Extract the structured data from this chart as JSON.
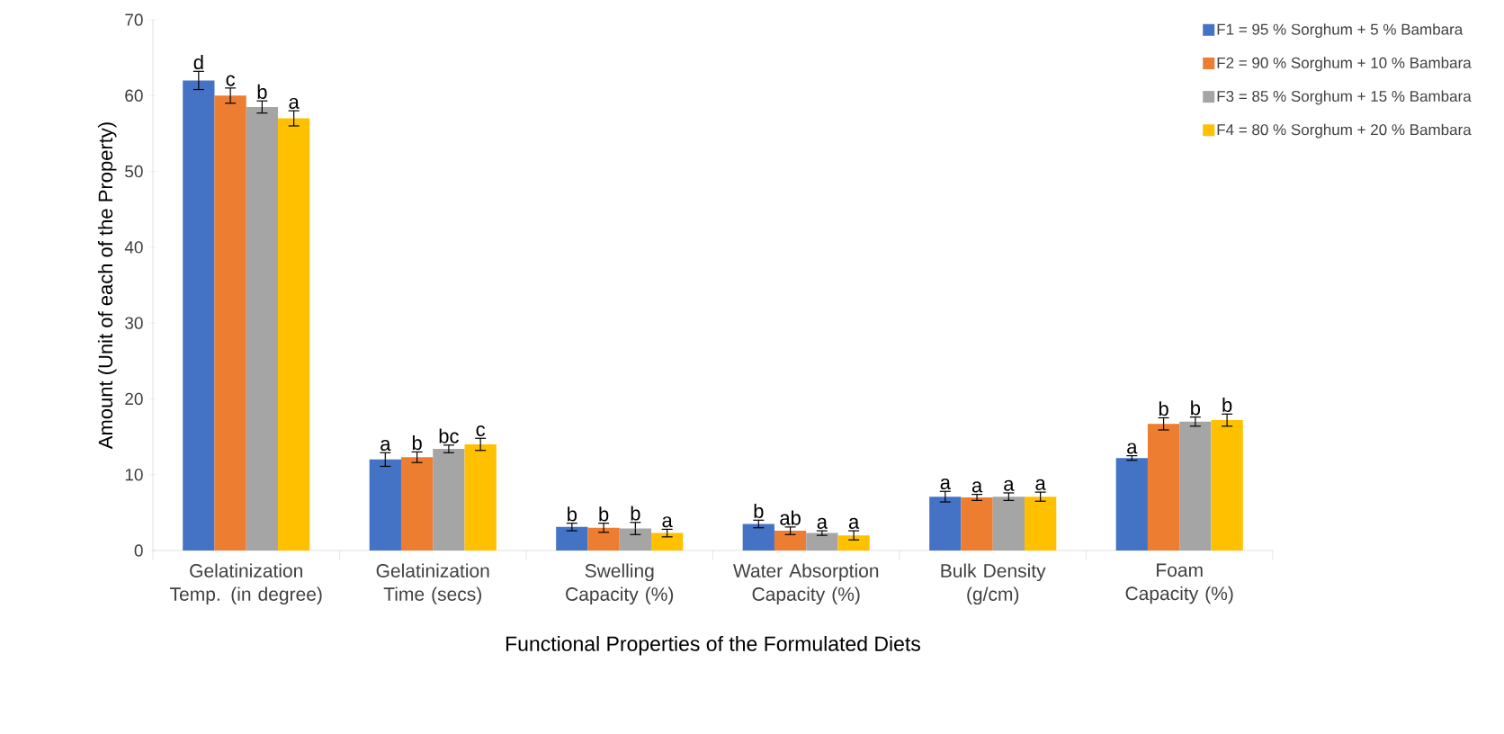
{
  "chart_data": {
    "type": "bar",
    "xlabel": "Functional Properties of the Formulated Diets",
    "ylabel": "Amount (Unit of each of the Property)",
    "categories": [
      "Gelatinization Temp.  (in degree)",
      "Gelatinization Time (secs)",
      "Swelling Capacity (%)",
      "Water Absorption Capacity (%)",
      "Bulk Density (g/cm)",
      "Foam Capacity (%)"
    ],
    "series": [
      {
        "name": "F1 = 95 % Sorghum + 5 % Bambara",
        "color": "#4472c4",
        "values": [
          62,
          12,
          3.1,
          3.5,
          7.1,
          12.2
        ],
        "errors": [
          1.2,
          0.9,
          0.5,
          0.5,
          0.7,
          0.3
        ],
        "value_labels": [
          "d",
          "a",
          "b",
          "b",
          "a",
          "a"
        ]
      },
      {
        "name": "F2 = 90 % Sorghum + 10 % Bambara",
        "color": "#ed7d31",
        "values": [
          60,
          12.3,
          3.0,
          2.6,
          7.0,
          16.7
        ],
        "errors": [
          1.0,
          0.7,
          0.6,
          0.5,
          0.4,
          0.8
        ],
        "value_labels": [
          "c",
          "b",
          "b",
          "ab",
          "a",
          "b"
        ]
      },
      {
        "name": "F3 = 85 % Sorghum + 15 % Bambara",
        "color": "#a5a5a5",
        "values": [
          58.5,
          13.4,
          2.9,
          2.3,
          7.1,
          17.0
        ],
        "errors": [
          0.8,
          0.5,
          0.8,
          0.3,
          0.5,
          0.6
        ],
        "value_labels": [
          "b",
          "bc",
          "b",
          "a",
          "a",
          "b"
        ]
      },
      {
        "name": "F4 = 80 % Sorghum + 20 % Bambara",
        "color": "#ffc000",
        "values": [
          57,
          14,
          2.3,
          2.0,
          7.1,
          17.2
        ],
        "errors": [
          1.0,
          0.8,
          0.5,
          0.6,
          0.6,
          0.8
        ],
        "value_labels": [
          "a",
          "c",
          "a",
          "a",
          "a",
          "b"
        ]
      }
    ],
    "ylim": [
      0,
      70
    ],
    "yticks": [
      0,
      10,
      20,
      30,
      40,
      50,
      60,
      70
    ],
    "legend": "top right",
    "grid": false
  }
}
